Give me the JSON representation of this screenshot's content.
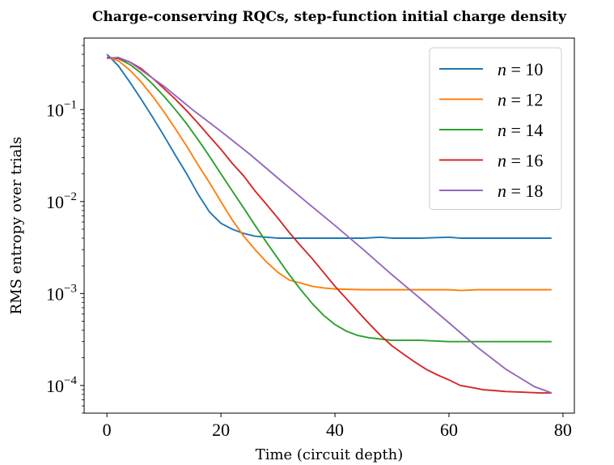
{
  "chart_data": {
    "type": "line",
    "title": "Charge-conserving RQCs, step-function initial charge density",
    "xlabel": "Time (circuit depth)",
    "ylabel": "RMS entropy over trials",
    "xlim": [
      -4,
      82
    ],
    "ylim": [
      5e-05,
      0.6
    ],
    "yscale": "log",
    "xticks": [
      0,
      20,
      40,
      60,
      80
    ],
    "xtick_labels": [
      "0",
      "20",
      "40",
      "60",
      "80"
    ],
    "yticks": [
      0.0001,
      0.001,
      0.01,
      0.1
    ],
    "ytick_bases": [
      "10",
      "10",
      "10",
      "10"
    ],
    "ytick_exponents": [
      "−4",
      "−3",
      "−2",
      "−1"
    ],
    "legend_position": "top-right",
    "grid": false,
    "series": [
      {
        "name": "n = 10",
        "legend_var": "n",
        "legend_value": "10",
        "color": "#1f77b4",
        "x": [
          0,
          2,
          4,
          6,
          8,
          10,
          12,
          14,
          16,
          18,
          20,
          22,
          24,
          26,
          28,
          30,
          32,
          35,
          40,
          45,
          48,
          50,
          55,
          60,
          62,
          65,
          70,
          75,
          78
        ],
        "y": [
          0.4,
          0.3,
          0.2,
          0.13,
          0.083,
          0.052,
          0.032,
          0.02,
          0.012,
          0.0077,
          0.0058,
          0.005,
          0.0045,
          0.0042,
          0.0041,
          0.004,
          0.004,
          0.004,
          0.004,
          0.004,
          0.0041,
          0.004,
          0.004,
          0.0041,
          0.004,
          0.004,
          0.004,
          0.004,
          0.004
        ]
      },
      {
        "name": "n = 12",
        "legend_var": "n",
        "legend_value": "12",
        "color": "#ff7f0e",
        "x": [
          0,
          2,
          4,
          6,
          8,
          10,
          12,
          14,
          16,
          18,
          20,
          22,
          24,
          26,
          28,
          30,
          32,
          34,
          36,
          38,
          40,
          45,
          50,
          55,
          60,
          62,
          65,
          70,
          75,
          78
        ],
        "y": [
          0.37,
          0.34,
          0.27,
          0.2,
          0.14,
          0.095,
          0.062,
          0.04,
          0.025,
          0.016,
          0.01,
          0.0063,
          0.0042,
          0.003,
          0.0022,
          0.0017,
          0.0014,
          0.0013,
          0.0012,
          0.00115,
          0.00112,
          0.0011,
          0.0011,
          0.0011,
          0.0011,
          0.00108,
          0.0011,
          0.0011,
          0.0011,
          0.0011
        ]
      },
      {
        "name": "n = 14",
        "legend_var": "n",
        "legend_value": "14",
        "color": "#2ca02c",
        "x": [
          0,
          2,
          4,
          6,
          8,
          10,
          12,
          14,
          16,
          18,
          20,
          22,
          24,
          26,
          28,
          30,
          32,
          34,
          36,
          38,
          40,
          42,
          44,
          46,
          48,
          50,
          55,
          60,
          65,
          70,
          75,
          78
        ],
        "y": [
          0.37,
          0.36,
          0.31,
          0.25,
          0.19,
          0.14,
          0.1,
          0.07,
          0.047,
          0.031,
          0.02,
          0.013,
          0.0085,
          0.0055,
          0.0036,
          0.0024,
          0.0016,
          0.0011,
          0.00078,
          0.00058,
          0.00046,
          0.00039,
          0.00035,
          0.00033,
          0.00032,
          0.00031,
          0.00031,
          0.0003,
          0.0003,
          0.0003,
          0.0003,
          0.0003
        ]
      },
      {
        "name": "n = 16",
        "legend_var": "n",
        "legend_value": "16",
        "color": "#d62728",
        "x": [
          0,
          2,
          4,
          6,
          8,
          10,
          12,
          14,
          16,
          18,
          20,
          22,
          24,
          26,
          28,
          30,
          32,
          34,
          36,
          38,
          40,
          42,
          44,
          46,
          48,
          50,
          52,
          54,
          56,
          58,
          60,
          62,
          64,
          66,
          68,
          70,
          72,
          74,
          76,
          78
        ],
        "y": [
          0.37,
          0.36,
          0.33,
          0.28,
          0.22,
          0.17,
          0.13,
          0.097,
          0.071,
          0.051,
          0.037,
          0.026,
          0.019,
          0.013,
          0.0093,
          0.0066,
          0.0046,
          0.0033,
          0.0024,
          0.0017,
          0.0012,
          0.00088,
          0.00064,
          0.00047,
          0.00035,
          0.00027,
          0.00022,
          0.00018,
          0.00015,
          0.00013,
          0.000115,
          0.0001,
          9.5e-05,
          9e-05,
          8.8e-05,
          8.6e-05,
          8.5e-05,
          8.4e-05,
          8.3e-05,
          8.3e-05
        ]
      },
      {
        "name": "n = 18",
        "legend_var": "n",
        "legend_value": "18",
        "color": "#9467bd",
        "x": [
          0,
          2,
          4,
          6,
          8,
          10,
          15,
          20,
          25,
          30,
          35,
          40,
          45,
          50,
          55,
          60,
          65,
          70,
          75,
          78
        ],
        "y": [
          0.36,
          0.37,
          0.33,
          0.27,
          0.22,
          0.18,
          0.1,
          0.058,
          0.033,
          0.018,
          0.0099,
          0.0055,
          0.003,
          0.0016,
          0.00088,
          0.00048,
          0.00026,
          0.00015,
          9.7e-05,
          8.3e-05
        ]
      }
    ]
  }
}
